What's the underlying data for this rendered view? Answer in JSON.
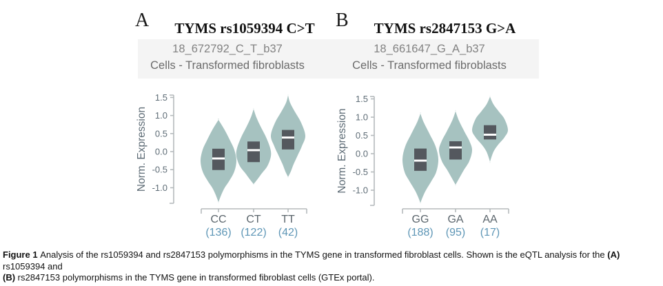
{
  "colors": {
    "violin_fill": "#a6c2c0",
    "box_fill": "#54585e",
    "median_line": "#ffffff",
    "axis_line": "#b5babc",
    "tick_text": "#5d6b75",
    "x_label_text": "#5a646b",
    "count_text": "#5e96b6",
    "subtitle_band_bg": "#f4f4f4",
    "title_text": "#111111"
  },
  "chart_data": [
    {
      "type": "violin",
      "panel": "A",
      "title": "TYMS rs1059394 C>T",
      "subtitle1": "18_672792_C_T_b37",
      "subtitle2": "Cells - Transformed fibroblasts",
      "ylabel": "Norm. Expression",
      "yticks": [
        1.5,
        1.0,
        0.5,
        0.0,
        -0.5,
        -1.0
      ],
      "ylim": [
        -1.45,
        1.6
      ],
      "categories": [
        "CC",
        "CT",
        "TT"
      ],
      "counts": [
        136,
        122,
        42
      ],
      "violins": [
        {
          "genotype": "CC",
          "n": 136,
          "box_top": 0.08,
          "box_bottom": -0.51,
          "median": -0.19,
          "tip_top": 0.88,
          "tip_bottom": -1.4,
          "profile": [
            [
              0.88,
              0
            ],
            [
              0.6,
              9
            ],
            [
              0.3,
              17
            ],
            [
              0.05,
              23
            ],
            [
              -0.25,
              26
            ],
            [
              -0.55,
              23
            ],
            [
              -0.8,
              16
            ],
            [
              -1.0,
              9
            ],
            [
              -1.2,
              4
            ],
            [
              -1.4,
              0
            ]
          ]
        },
        {
          "genotype": "CT",
          "n": 122,
          "box_top": 0.28,
          "box_bottom": -0.29,
          "median": 0.04,
          "tip_top": 1.18,
          "tip_bottom": -0.9,
          "profile": [
            [
              1.18,
              0
            ],
            [
              0.95,
              4
            ],
            [
              0.7,
              10
            ],
            [
              0.4,
              18
            ],
            [
              0.1,
              24
            ],
            [
              -0.13,
              25
            ],
            [
              -0.4,
              20
            ],
            [
              -0.6,
              12
            ],
            [
              -0.78,
              5
            ],
            [
              -0.9,
              0
            ]
          ]
        },
        {
          "genotype": "TT",
          "n": 42,
          "box_top": 0.6,
          "box_bottom": 0.06,
          "median": 0.39,
          "tip_top": 1.56,
          "tip_bottom": -0.7,
          "profile": [
            [
              1.56,
              0
            ],
            [
              1.35,
              3
            ],
            [
              1.1,
              10
            ],
            [
              0.8,
              19
            ],
            [
              0.44,
              25
            ],
            [
              0.15,
              20
            ],
            [
              -0.1,
              14
            ],
            [
              -0.35,
              8
            ],
            [
              -0.55,
              4
            ],
            [
              -0.7,
              0
            ]
          ]
        }
      ]
    },
    {
      "type": "violin",
      "panel": "B",
      "title": "TYMS rs2847153 G>A",
      "subtitle1": "18_661647_G_A_b37",
      "subtitle2": "Cells - Transformed fibroblasts",
      "ylabel": "Norm. Expression",
      "yticks": [
        1.5,
        1.0,
        0.5,
        0.0,
        -0.5,
        -1.0
      ],
      "ylim": [
        -1.4,
        1.6
      ],
      "categories": [
        "GG",
        "GA",
        "AA"
      ],
      "counts": [
        188,
        95,
        17
      ],
      "violins": [
        {
          "genotype": "GG",
          "n": 188,
          "box_top": 0.14,
          "box_bottom": -0.47,
          "median": -0.19,
          "tip_top": 1.1,
          "tip_bottom": -1.35,
          "profile": [
            [
              1.1,
              0
            ],
            [
              0.85,
              5
            ],
            [
              0.55,
              13
            ],
            [
              0.2,
              22
            ],
            [
              -0.15,
              26
            ],
            [
              -0.5,
              23
            ],
            [
              -0.75,
              16
            ],
            [
              -1.0,
              8
            ],
            [
              -1.2,
              3
            ],
            [
              -1.35,
              0
            ]
          ]
        },
        {
          "genotype": "GA",
          "n": 95,
          "box_top": 0.34,
          "box_bottom": -0.16,
          "median": 0.17,
          "tip_top": 1.16,
          "tip_bottom": -0.85,
          "profile": [
            [
              1.16,
              0
            ],
            [
              0.9,
              5
            ],
            [
              0.6,
              13
            ],
            [
              0.35,
              20
            ],
            [
              0.1,
              24
            ],
            [
              -0.2,
              20
            ],
            [
              -0.45,
              12
            ],
            [
              -0.65,
              6
            ],
            [
              -0.85,
              0
            ]
          ]
        },
        {
          "genotype": "AA",
          "n": 17,
          "box_top": 0.78,
          "box_bottom": 0.39,
          "median": 0.52,
          "tip_top": 1.56,
          "tip_bottom": -0.22,
          "profile": [
            [
              1.56,
              0
            ],
            [
              1.35,
              5
            ],
            [
              1.15,
              13
            ],
            [
              0.95,
              21
            ],
            [
              0.65,
              26
            ],
            [
              0.45,
              21
            ],
            [
              0.25,
              12
            ],
            [
              0.05,
              5
            ],
            [
              -0.22,
              0
            ]
          ]
        }
      ]
    }
  ],
  "caption": {
    "lines": [
      [
        {
          "text": "Figure 1 ",
          "bold": true
        },
        {
          "text": "Analysis of the rs1059394 and rs2847153 polymorphisms in the TYMS gene in transformed fibroblast cells. Shown is the eQTL analysis for the ",
          "bold": false
        },
        {
          "text": "(A)",
          "bold": true
        },
        {
          "text": " rs1059394 and",
          "bold": false
        }
      ],
      [
        {
          "text": "(B)",
          "bold": true
        },
        {
          "text": " rs2847153 polymorphisms in the TYMS gene in transformed fibroblast cells (GTEx portal).",
          "bold": false
        }
      ]
    ]
  }
}
